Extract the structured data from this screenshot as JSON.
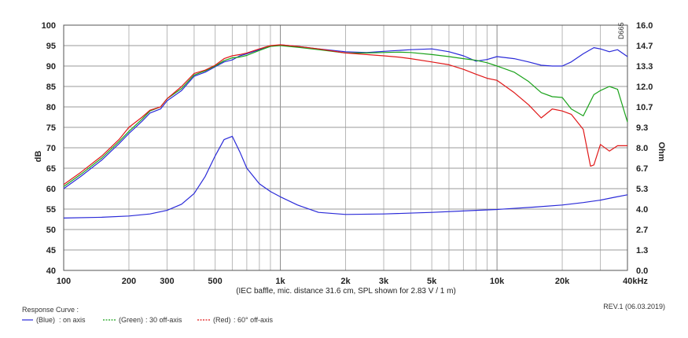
{
  "chart_data": {
    "type": "line",
    "title": "",
    "xlabel": "(IEC baffle, mic. distance 31.6 cm, SPL shown for 2.83 V / 1 m)",
    "ylabel": "dB",
    "y2label": "Ohm",
    "xscale": "log",
    "xlim": [
      100,
      40000
    ],
    "ylim": [
      40,
      100
    ],
    "y2lim": [
      0.0,
      16.0
    ],
    "grid": true,
    "x_tick_labels": [
      "100",
      "200",
      "300",
      "500",
      "1k",
      "2k",
      "3k",
      "5k",
      "10k",
      "20k",
      "40kHz"
    ],
    "x_tick_values": [
      100,
      200,
      300,
      500,
      1000,
      2000,
      3000,
      5000,
      10000,
      20000,
      40000
    ],
    "y_tick_labels": [
      "100",
      "95",
      "90",
      "85",
      "80",
      "75",
      "70",
      "65",
      "60",
      "55",
      "50",
      "45",
      "40"
    ],
    "y_tick_values": [
      100,
      95,
      90,
      85,
      80,
      75,
      70,
      65,
      60,
      55,
      50,
      45,
      40
    ],
    "y2_tick_labels": [
      "16.0",
      "14.7",
      "13.3",
      "12.0",
      "10.7",
      "9.3",
      "8.0",
      "6.7",
      "5.3",
      "4.0",
      "2.7",
      "1.3",
      "0.0"
    ],
    "watermark": "D665",
    "legend_title": "Response Curve :",
    "revision": "REV.1 (06.03.2019)",
    "legend": [
      {
        "color_name": "(Blue)",
        "label": ": on axis",
        "color": "#2a2ad8"
      },
      {
        "color_name": "(Green)",
        "label": ": 30 off-axis",
        "color": "#1aa21a"
      },
      {
        "color_name": "(Red)",
        "label": ": 60° off-axis",
        "color": "#e01818"
      }
    ],
    "series": [
      {
        "color": "#2a2ad8",
        "axis": "left",
        "x": [
          100,
          120,
          150,
          180,
          200,
          230,
          250,
          280,
          300,
          350,
          400,
          450,
          500,
          550,
          600,
          650,
          700,
          800,
          900,
          1000,
          1200,
          1500,
          2000,
          2500,
          3000,
          3500,
          4000,
          5000,
          6000,
          7000,
          8000,
          9000,
          10000,
          12000,
          14000,
          16000,
          18000,
          20000,
          22000,
          25000,
          28000,
          30000,
          33000,
          36000,
          40000
        ],
        "y": [
          60,
          63,
          67,
          71,
          73.5,
          76.5,
          78.5,
          79.5,
          81.5,
          84,
          87.5,
          88.5,
          89.8,
          91,
          91.5,
          92.5,
          93,
          94,
          94.8,
          95.2,
          94.8,
          94.2,
          93.5,
          93.3,
          93.6,
          93.8,
          94,
          94.2,
          93.5,
          92.5,
          91.2,
          91.6,
          92.3,
          91.8,
          91,
          90.2,
          90,
          90,
          91,
          93,
          94.5,
          94.2,
          93.5,
          94,
          92.3
        ]
      },
      {
        "color": "#1aa21a",
        "axis": "left",
        "x": [
          100,
          120,
          150,
          180,
          200,
          230,
          250,
          280,
          300,
          350,
          400,
          450,
          500,
          550,
          600,
          650,
          700,
          800,
          900,
          1000,
          1200,
          1500,
          2000,
          2500,
          3000,
          3500,
          4000,
          5000,
          6000,
          7000,
          8000,
          9000,
          10000,
          12000,
          14000,
          16000,
          18000,
          20000,
          22000,
          25000,
          28000,
          30000,
          33000,
          36000,
          40000
        ],
        "y": [
          60.5,
          63.5,
          67.5,
          71.5,
          74,
          77,
          79,
          80,
          82,
          84.5,
          87.8,
          88.8,
          90,
          91.3,
          92,
          92.2,
          92.6,
          93.8,
          94.8,
          95,
          94.6,
          94,
          93.2,
          93.2,
          93.3,
          93.4,
          93.3,
          92.8,
          92.3,
          91.8,
          91.4,
          90.8,
          90,
          88.5,
          86.2,
          83.5,
          82.5,
          82.3,
          79.5,
          77.8,
          83,
          84,
          85,
          84.3,
          76.3
        ]
      },
      {
        "color": "#e01818",
        "axis": "left",
        "x": [
          100,
          120,
          150,
          180,
          200,
          230,
          250,
          280,
          300,
          350,
          400,
          450,
          500,
          550,
          600,
          650,
          700,
          800,
          900,
          1000,
          1200,
          1500,
          2000,
          2500,
          3000,
          3500,
          4000,
          5000,
          6000,
          7000,
          8000,
          9000,
          10000,
          12000,
          14000,
          16000,
          18000,
          20000,
          22000,
          25000,
          27000,
          28000,
          30000,
          33000,
          36000,
          40000
        ],
        "y": [
          61,
          64,
          68,
          72,
          75,
          77.5,
          79.2,
          80,
          82,
          85,
          88.2,
          89,
          90.2,
          91.8,
          92.5,
          92.8,
          93.2,
          94.2,
          95,
          95.2,
          94.8,
          94.2,
          93.2,
          92.8,
          92.5,
          92.2,
          91.8,
          91,
          90.3,
          89.2,
          88,
          87,
          86.5,
          83.5,
          80.5,
          77.3,
          79.5,
          79,
          78.2,
          74.5,
          65.5,
          65.8,
          70.8,
          69.2,
          70.5,
          70.5
        ]
      },
      {
        "color": "#2a2ad8",
        "axis": "left",
        "x": [
          100,
          150,
          200,
          250,
          300,
          350,
          400,
          450,
          500,
          550,
          600,
          650,
          700,
          800,
          900,
          1000,
          1200,
          1500,
          2000,
          3000,
          5000,
          8000,
          10000,
          15000,
          20000,
          25000,
          30000,
          35000,
          40000
        ],
        "y": [
          52.8,
          53,
          53.3,
          53.8,
          54.7,
          56.2,
          58.8,
          63,
          68,
          72,
          72.8,
          69,
          65,
          61.2,
          59.3,
          58,
          56,
          54.2,
          53.7,
          53.8,
          54.2,
          54.7,
          54.9,
          55.5,
          56,
          56.6,
          57.2,
          57.9,
          58.5
        ]
      }
    ]
  }
}
